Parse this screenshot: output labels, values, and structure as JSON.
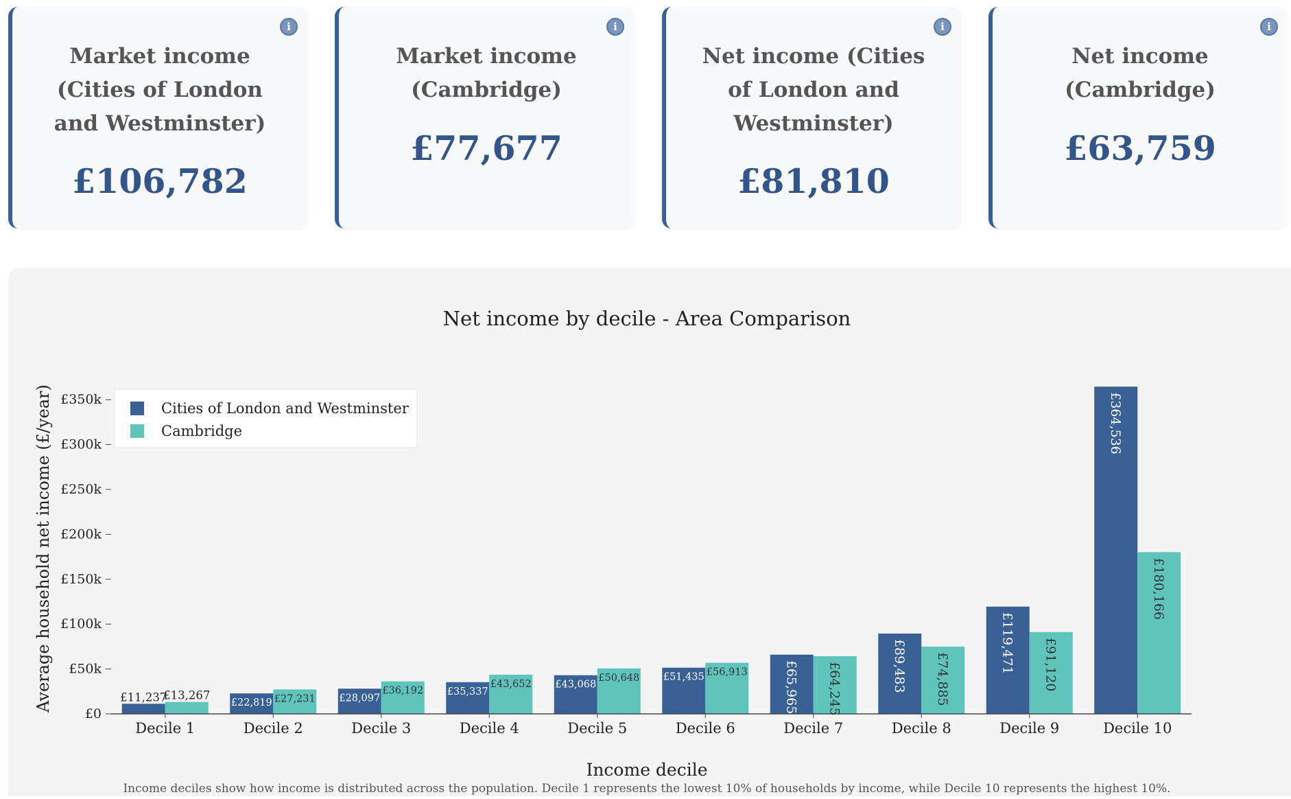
{
  "cards": [
    {
      "label": "Market income (Cities of London and Westminster)",
      "value": "£106,782",
      "info_icon": "info-icon"
    },
    {
      "label": "Market income (Cambridge)",
      "value": "£77,677",
      "info_icon": "info-icon"
    },
    {
      "label": "Net income (Cities of London and Westminster)",
      "value": "£81,810",
      "info_icon": "info-icon"
    },
    {
      "label": "Net income (Cambridge)",
      "value": "£63,759",
      "info_icon": "info-icon"
    }
  ],
  "colors": {
    "accent": "#3a6196",
    "series1": "#3a6196",
    "series2": "#5fc4bc",
    "panel_bg": "#f4f4f4"
  },
  "chart_data": {
    "type": "bar",
    "title": "Net income by decile - Area Comparison",
    "xlabel": "Income decile",
    "ylabel": "Average household net income (£/year)",
    "categories": [
      "Decile 1",
      "Decile 2",
      "Decile 3",
      "Decile 4",
      "Decile 5",
      "Decile 6",
      "Decile 7",
      "Decile 8",
      "Decile 9",
      "Decile 10"
    ],
    "series": [
      {
        "name": "Cities of London and Westminster",
        "values": [
          11237,
          22819,
          28097,
          35337,
          43068,
          51435,
          65965,
          89483,
          119471,
          364536
        ],
        "labels": [
          "£11,237",
          "£22,819",
          "£28,097",
          "£35,337",
          "£43,068",
          "£51,435",
          "£65,965",
          "£89,483",
          "£119,471",
          "£364,536"
        ]
      },
      {
        "name": "Cambridge",
        "values": [
          13267,
          27231,
          36192,
          43652,
          50648,
          56913,
          64245,
          74885,
          91120,
          180166
        ],
        "labels": [
          "£13,267",
          "£27,231",
          "£36,192",
          "£43,652",
          "£50,648",
          "£56,913",
          "£64,245",
          "£74,885",
          "£91,120",
          "£180,166"
        ]
      }
    ],
    "ylim": [
      0,
      380000
    ],
    "yticks": [
      0,
      50000,
      100000,
      150000,
      200000,
      250000,
      300000,
      350000
    ],
    "ytick_labels": [
      "£0",
      "£50k",
      "£100k",
      "£150k",
      "£200k",
      "£250k",
      "£300k",
      "£350k"
    ],
    "legend_position": "top-left",
    "grid": false,
    "footnote": "Income deciles show how income is distributed across the population. Decile 1 represents the lowest 10% of households by income, while Decile 10 represents the highest 10%."
  }
}
